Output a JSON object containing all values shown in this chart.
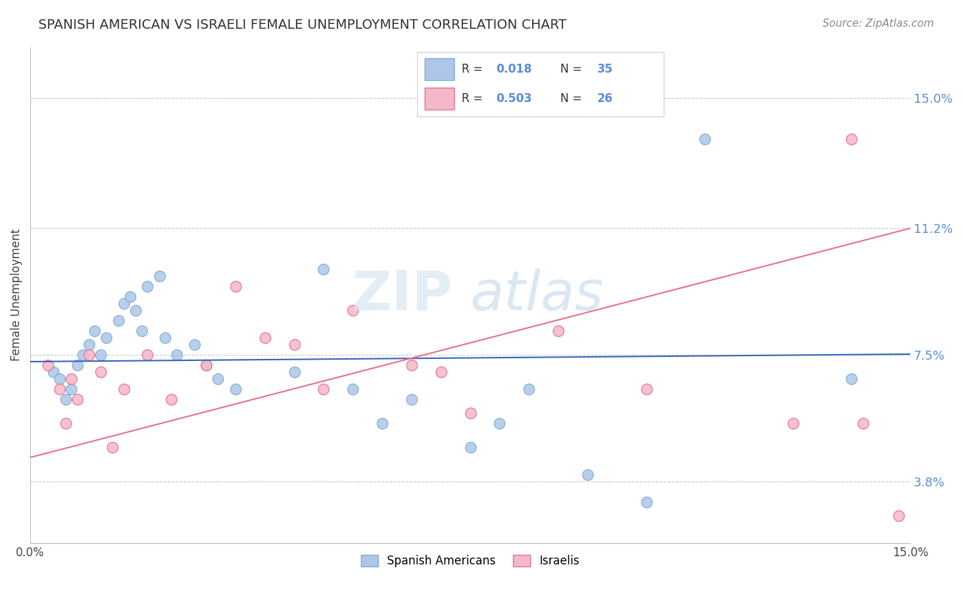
{
  "title": "SPANISH AMERICAN VS ISRAELI FEMALE UNEMPLOYMENT CORRELATION CHART",
  "source": "Source: ZipAtlas.com",
  "ylabel": "Female Unemployment",
  "xlim": [
    0.0,
    15.0
  ],
  "ylim": [
    2.0,
    16.5
  ],
  "yticks": [
    3.8,
    7.5,
    11.2,
    15.0
  ],
  "xtick_labels": [
    "0.0%",
    "15.0%"
  ],
  "ytick_labels": [
    "3.8%",
    "7.5%",
    "11.2%",
    "15.0%"
  ],
  "tick_color": "#5b8dd9",
  "spanish_americans": {
    "x": [
      0.4,
      0.5,
      0.6,
      0.7,
      0.8,
      0.9,
      1.0,
      1.1,
      1.2,
      1.3,
      1.5,
      1.6,
      1.7,
      1.8,
      1.9,
      2.0,
      2.2,
      2.3,
      2.5,
      2.8,
      3.0,
      3.2,
      3.5,
      4.5,
      5.0,
      5.5,
      6.0,
      6.5,
      7.5,
      8.0,
      8.5,
      9.5,
      10.5,
      11.5,
      14.0
    ],
    "y": [
      7.0,
      6.8,
      6.2,
      6.5,
      7.2,
      7.5,
      7.8,
      8.2,
      7.5,
      8.0,
      8.5,
      9.0,
      9.2,
      8.8,
      8.2,
      9.5,
      9.8,
      8.0,
      7.5,
      7.8,
      7.2,
      6.8,
      6.5,
      7.0,
      10.0,
      6.5,
      5.5,
      6.2,
      4.8,
      5.5,
      6.5,
      4.0,
      3.2,
      13.8,
      6.8
    ],
    "color": "#aec6e8",
    "edge_color": "#7bafd4",
    "R": 0.018,
    "N": 35,
    "line_color": "#3366bb",
    "line_start_x": 0.0,
    "line_start_y": 7.3,
    "line_end_x": 15.0,
    "line_end_y": 7.52
  },
  "israelis": {
    "x": [
      0.3,
      0.5,
      0.6,
      0.7,
      0.8,
      1.0,
      1.2,
      1.4,
      1.6,
      2.0,
      2.4,
      3.0,
      3.5,
      4.0,
      4.5,
      5.0,
      5.5,
      6.5,
      7.0,
      7.5,
      9.0,
      10.5,
      13.0,
      14.0,
      14.2,
      14.8
    ],
    "y": [
      7.2,
      6.5,
      5.5,
      6.8,
      6.2,
      7.5,
      7.0,
      4.8,
      6.5,
      7.5,
      6.2,
      7.2,
      9.5,
      8.0,
      7.8,
      6.5,
      8.8,
      7.2,
      7.0,
      5.8,
      8.2,
      6.5,
      5.5,
      13.8,
      5.5,
      2.8
    ],
    "color": "#f5b8c8",
    "edge_color": "#e87090",
    "R": 0.503,
    "N": 26,
    "line_color": "#e8708a",
    "line_start_x": 0.0,
    "line_start_y": 4.5,
    "line_end_x": 15.0,
    "line_end_y": 11.2
  },
  "grid_color": "#c8c8c8",
  "background_color": "#ffffff",
  "watermark_zip": "ZIP",
  "watermark_atlas": "atlas",
  "legend_title_color": "#333333",
  "legend_value_color": "#5b8dd9"
}
